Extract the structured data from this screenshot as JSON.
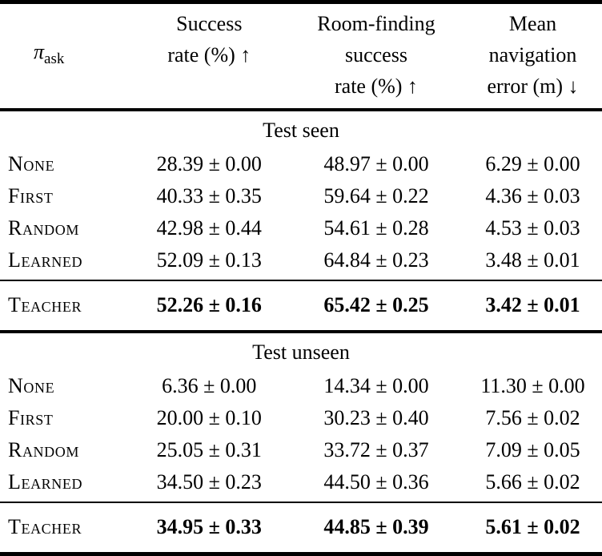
{
  "table": {
    "header": {
      "policy_symbol": "π",
      "policy_subscript": "ask",
      "columns": [
        {
          "lines": [
            "Success",
            "rate (%) ↑"
          ]
        },
        {
          "lines": [
            "Room-finding",
            "success",
            "rate (%) ↑"
          ]
        },
        {
          "lines": [
            "Mean",
            "navigation",
            "error (m) ↓"
          ]
        }
      ]
    },
    "sections": [
      {
        "title": "Test seen",
        "rows": [
          {
            "label": "None",
            "values": [
              "28.39 ± 0.00",
              "48.97 ± 0.00",
              "6.29 ± 0.00"
            ]
          },
          {
            "label": "First",
            "values": [
              "40.33 ± 0.35",
              "59.64 ± 0.22",
              "4.36 ± 0.03"
            ]
          },
          {
            "label": "Random",
            "values": [
              "42.98 ± 0.44",
              "54.61 ± 0.28",
              "4.53 ± 0.03"
            ]
          },
          {
            "label": "Learned",
            "values": [
              "52.09 ± 0.13",
              "64.84 ± 0.23",
              "3.48 ± 0.01"
            ]
          }
        ],
        "best_row": {
          "label": "Teacher",
          "values": [
            "52.26 ± 0.16",
            "65.42 ± 0.25",
            "3.42 ± 0.01"
          ]
        }
      },
      {
        "title": "Test unseen",
        "rows": [
          {
            "label": "None",
            "values": [
              "6.36 ± 0.00",
              "14.34 ± 0.00",
              "11.30 ± 0.00"
            ]
          },
          {
            "label": "First",
            "values": [
              "20.00 ± 0.10",
              "30.23 ± 0.40",
              "7.56 ± 0.02"
            ]
          },
          {
            "label": "Random",
            "values": [
              "25.05 ± 0.31",
              "33.72 ± 0.37",
              "7.09 ± 0.05"
            ]
          },
          {
            "label": "Learned",
            "values": [
              "34.50 ± 0.23",
              "44.50 ± 0.36",
              "5.66 ± 0.02"
            ]
          }
        ],
        "best_row": {
          "label": "Teacher",
          "values": [
            "34.95 ± 0.33",
            "44.85 ± 0.39",
            "5.61 ± 0.02"
          ]
        }
      }
    ]
  },
  "colors": {
    "rule": "#000000",
    "text": "#000000",
    "background": "#ffffff"
  }
}
